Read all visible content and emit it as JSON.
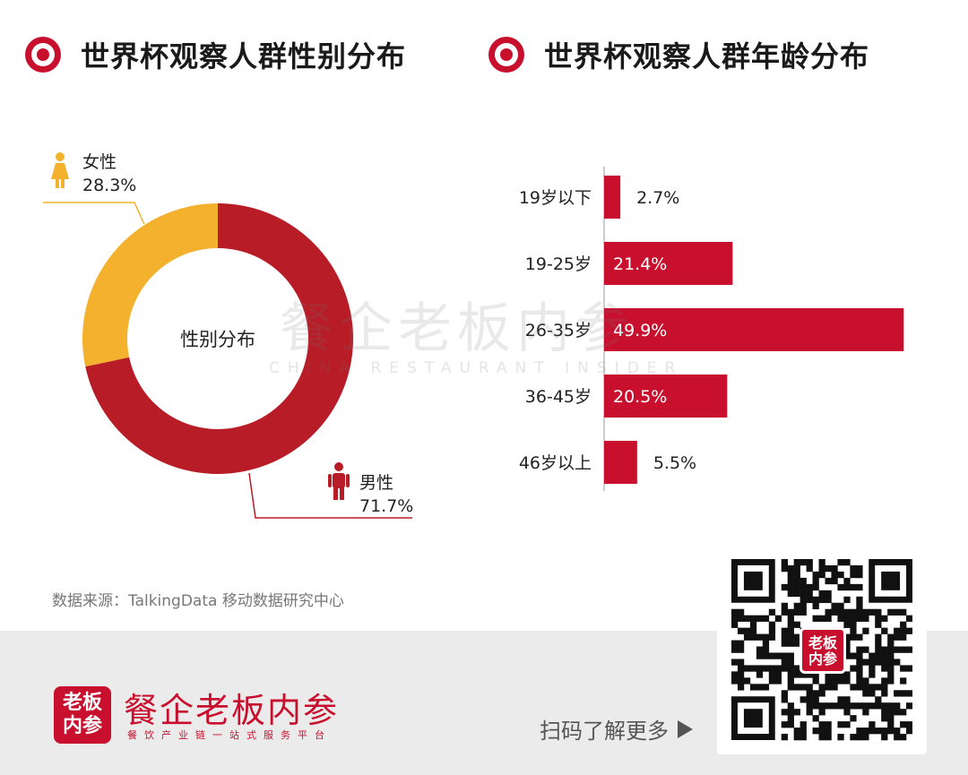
{
  "sections": {
    "gender_title": "世界杯观察人群性别分布",
    "age_title": "世界杯观察人群年龄分布"
  },
  "chart_data": [
    {
      "type": "pie",
      "center_label": "性别分布",
      "slices": [
        {
          "name": "女性",
          "value": 28.3,
          "label": "28.3%",
          "color": "#f4b12d",
          "icon": "female-person-icon"
        },
        {
          "name": "男性",
          "value": 71.7,
          "label": "71.7%",
          "color": "#b71c27",
          "icon": "male-person-icon"
        }
      ]
    },
    {
      "type": "bar",
      "orientation": "horizontal",
      "categories": [
        "19岁以下",
        "19-25岁",
        "26-35岁",
        "36-45岁",
        "46岁以上"
      ],
      "values": [
        2.7,
        21.4,
        49.9,
        20.5,
        5.5
      ],
      "labels": [
        "2.7%",
        "21.4%",
        "49.9%",
        "20.5%",
        "5.5%"
      ],
      "xlim": [
        0,
        50
      ],
      "bar_color": "#c8102e"
    }
  ],
  "watermark": {
    "main": "餐企老板内参",
    "sub": "CHINA RESTAURANT INSIDER"
  },
  "source": "数据来源：TalkingData 移动数据研究中心",
  "footer": {
    "logo_text": "老板内参",
    "brand_name": "餐企老板内参",
    "tagline": "餐饮产业链一站式服务平台",
    "cta": "扫码了解更多",
    "qr_logo_text": "老板内参"
  },
  "colors": {
    "accent_red": "#c8102e",
    "male_red": "#b71c27",
    "female_yellow": "#f4b12d",
    "footer_gray": "#ebebeb"
  }
}
